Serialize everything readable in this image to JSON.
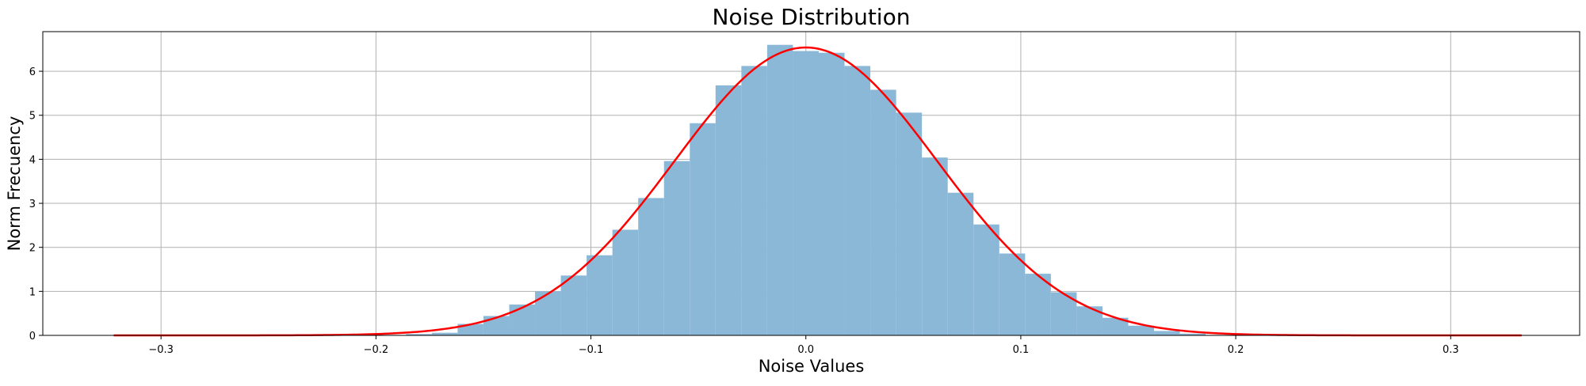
{
  "chart_data": {
    "type": "histogram",
    "title": "Noise Distribution",
    "xlabel": "Noise Values",
    "ylabel": "Norm Frecuency",
    "xlim": [
      -0.355,
      0.36
    ],
    "ylim": [
      0,
      6.9
    ],
    "grid": true,
    "x_ticks": [
      -0.3,
      -0.2,
      -0.1,
      0.0,
      0.1,
      0.2,
      0.3
    ],
    "x_tick_labels": [
      "−0.3",
      "−0.2",
      "−0.1",
      "0.0",
      "0.1",
      "0.2",
      "0.3"
    ],
    "y_ticks": [
      0,
      1,
      2,
      3,
      4,
      5,
      6
    ],
    "y_tick_labels": [
      "0",
      "1",
      "2",
      "3",
      "4",
      "5",
      "6"
    ],
    "bar_color": "#8cb8d8",
    "curve_color": "#ff0000",
    "bin_width": 0.012,
    "bins": [
      {
        "x": -0.18,
        "y": 0.03
      },
      {
        "x": -0.168,
        "y": 0.06
      },
      {
        "x": -0.156,
        "y": 0.26
      },
      {
        "x": -0.144,
        "y": 0.44
      },
      {
        "x": -0.132,
        "y": 0.7
      },
      {
        "x": -0.12,
        "y": 1.0
      },
      {
        "x": -0.108,
        "y": 1.36
      },
      {
        "x": -0.096,
        "y": 1.82
      },
      {
        "x": -0.084,
        "y": 2.4
      },
      {
        "x": -0.072,
        "y": 3.12
      },
      {
        "x": -0.06,
        "y": 3.96
      },
      {
        "x": -0.048,
        "y": 4.82
      },
      {
        "x": -0.036,
        "y": 5.68
      },
      {
        "x": -0.024,
        "y": 6.12
      },
      {
        "x": -0.012,
        "y": 6.6
      },
      {
        "x": 0.0,
        "y": 6.46
      },
      {
        "x": 0.012,
        "y": 6.42
      },
      {
        "x": 0.024,
        "y": 6.12
      },
      {
        "x": 0.036,
        "y": 5.58
      },
      {
        "x": 0.048,
        "y": 5.06
      },
      {
        "x": 0.06,
        "y": 4.04
      },
      {
        "x": 0.072,
        "y": 3.24
      },
      {
        "x": 0.084,
        "y": 2.52
      },
      {
        "x": 0.096,
        "y": 1.86
      },
      {
        "x": 0.108,
        "y": 1.4
      },
      {
        "x": 0.12,
        "y": 0.98
      },
      {
        "x": 0.132,
        "y": 0.66
      },
      {
        "x": 0.144,
        "y": 0.4
      },
      {
        "x": 0.156,
        "y": 0.22
      },
      {
        "x": 0.168,
        "y": 0.1
      },
      {
        "x": 0.18,
        "y": 0.04
      }
    ],
    "curve": {
      "type": "normal_pdf",
      "mean": 0.0,
      "std": 0.061,
      "x_range": [
        -0.322,
        0.333
      ]
    }
  }
}
